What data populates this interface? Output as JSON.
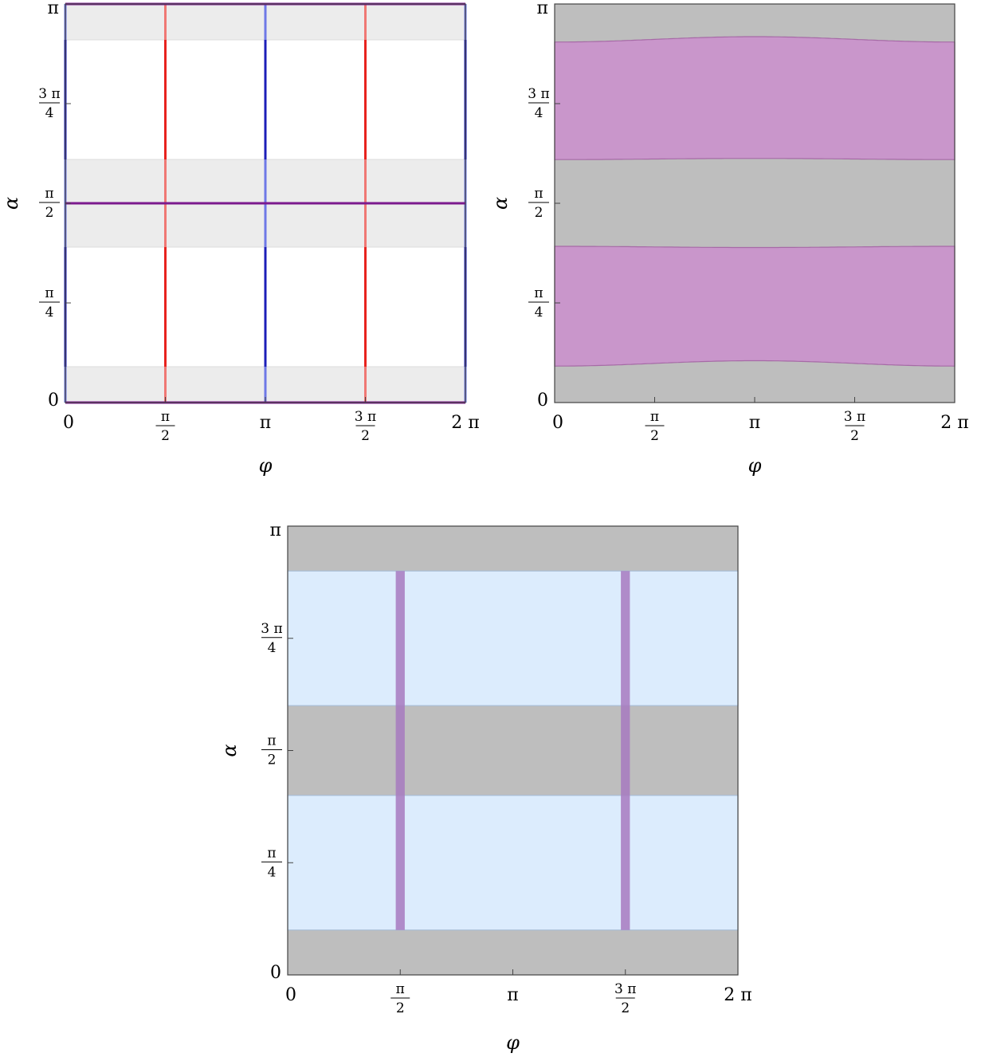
{
  "colors": {
    "red_line": "#e8231e",
    "red_line_light": "#f07874",
    "blue_line": "#1c1fb8",
    "blue_line_light": "#6e78e6",
    "purple_line": "#7b1a8e",
    "light_band": "#ececec",
    "gray_band": "#bebebe",
    "pink_region": "#c996cb",
    "pink_edge": "#a66aa6",
    "light_blue_region": "#dcecfd",
    "light_blue_edge": "#a9bed6",
    "purple_strip": "#a77ac0",
    "frame": "#444444"
  },
  "chart_data": [
    {
      "type": "region-plot",
      "xlabel": "φ",
      "ylabel": "α",
      "xlim_in_pi": [
        0,
        2
      ],
      "ylim_in_pi": [
        0,
        1
      ],
      "x_ticks": [
        {
          "value_in_pi": 0,
          "label": "0"
        },
        {
          "value_in_pi": 0.5,
          "num": "π",
          "den": "2"
        },
        {
          "value_in_pi": 1,
          "label": "π"
        },
        {
          "value_in_pi": 1.5,
          "num": "3 π",
          "den": "2"
        },
        {
          "value_in_pi": 2,
          "label": "2 π"
        }
      ],
      "y_ticks": [
        {
          "value_in_pi": 0,
          "label": "0"
        },
        {
          "value_in_pi": 0.25,
          "num": "π",
          "den": "4"
        },
        {
          "value_in_pi": 0.5,
          "num": "π",
          "den": "2"
        },
        {
          "value_in_pi": 0.75,
          "num": "3 π",
          "den": "4"
        },
        {
          "value_in_pi": 1,
          "label": "π"
        }
      ],
      "bands_alpha_in_pi": [
        [
          0,
          0.09
        ],
        [
          0.39,
          0.61
        ],
        [
          0.91,
          1
        ]
      ],
      "vertical_lines": [
        {
          "phi_in_pi": 0,
          "color": "blue"
        },
        {
          "phi_in_pi": 0.5,
          "color": "red"
        },
        {
          "phi_in_pi": 1,
          "color": "blue"
        },
        {
          "phi_in_pi": 1.5,
          "color": "red"
        },
        {
          "phi_in_pi": 2,
          "color": "blue"
        }
      ],
      "horizontal_lines_alpha_in_pi": [
        0,
        0.5,
        1
      ]
    },
    {
      "type": "region-plot",
      "xlabel": "φ",
      "ylabel": "α",
      "xlim_in_pi": [
        0,
        2
      ],
      "ylim_in_pi": [
        0,
        1
      ],
      "x_ticks": [
        {
          "value_in_pi": 0,
          "label": "0"
        },
        {
          "value_in_pi": 0.5,
          "num": "π",
          "den": "2"
        },
        {
          "value_in_pi": 1,
          "label": "π"
        },
        {
          "value_in_pi": 1.5,
          "num": "3 π",
          "den": "2"
        },
        {
          "value_in_pi": 2,
          "label": "2 π"
        }
      ],
      "y_ticks": [
        {
          "value_in_pi": 0,
          "label": "0"
        },
        {
          "value_in_pi": 0.25,
          "num": "π",
          "den": "4"
        },
        {
          "value_in_pi": 0.5,
          "num": "π",
          "den": "2"
        },
        {
          "value_in_pi": 0.75,
          "num": "3 π",
          "den": "4"
        },
        {
          "value_in_pi": 1,
          "label": "π"
        }
      ],
      "regions": [
        {
          "lower": {
            "base_in_pi": 0.0915,
            "amplitude_in_pi": 0.0135
          },
          "upper": {
            "base_in_pi": 0.392,
            "amplitude_in_pi": -0.003
          }
        },
        {
          "lower": {
            "base_in_pi": 0.6095,
            "amplitude_in_pi": 0.003
          },
          "upper": {
            "base_in_pi": 0.9045,
            "amplitude_in_pi": 0.0135
          }
        }
      ]
    },
    {
      "type": "region-plot",
      "xlabel": "φ",
      "ylabel": "α",
      "xlim_in_pi": [
        0,
        2
      ],
      "ylim_in_pi": [
        0,
        1
      ],
      "x_ticks": [
        {
          "value_in_pi": 0,
          "label": "0"
        },
        {
          "value_in_pi": 0.5,
          "num": "π",
          "den": "2"
        },
        {
          "value_in_pi": 1,
          "label": "π"
        },
        {
          "value_in_pi": 1.5,
          "num": "3 π",
          "den": "2"
        },
        {
          "value_in_pi": 2,
          "label": "2 π"
        }
      ],
      "y_ticks": [
        {
          "value_in_pi": 0,
          "label": "0"
        },
        {
          "value_in_pi": 0.25,
          "num": "π",
          "den": "4"
        },
        {
          "value_in_pi": 0.5,
          "num": "π",
          "den": "2"
        },
        {
          "value_in_pi": 0.75,
          "num": "3 π",
          "den": "4"
        },
        {
          "value_in_pi": 1,
          "label": "π"
        }
      ],
      "light_regions_alpha_in_pi": [
        [
          0.1,
          0.4
        ],
        [
          0.6,
          0.9
        ]
      ],
      "purple_strips": [
        {
          "phi_in_pi": [
            0.48,
            0.52
          ],
          "alpha_in_pi": [
            0.1,
            0.9
          ]
        },
        {
          "phi_in_pi": [
            1.48,
            1.52
          ],
          "alpha_in_pi": [
            0.1,
            0.9
          ]
        }
      ]
    }
  ]
}
